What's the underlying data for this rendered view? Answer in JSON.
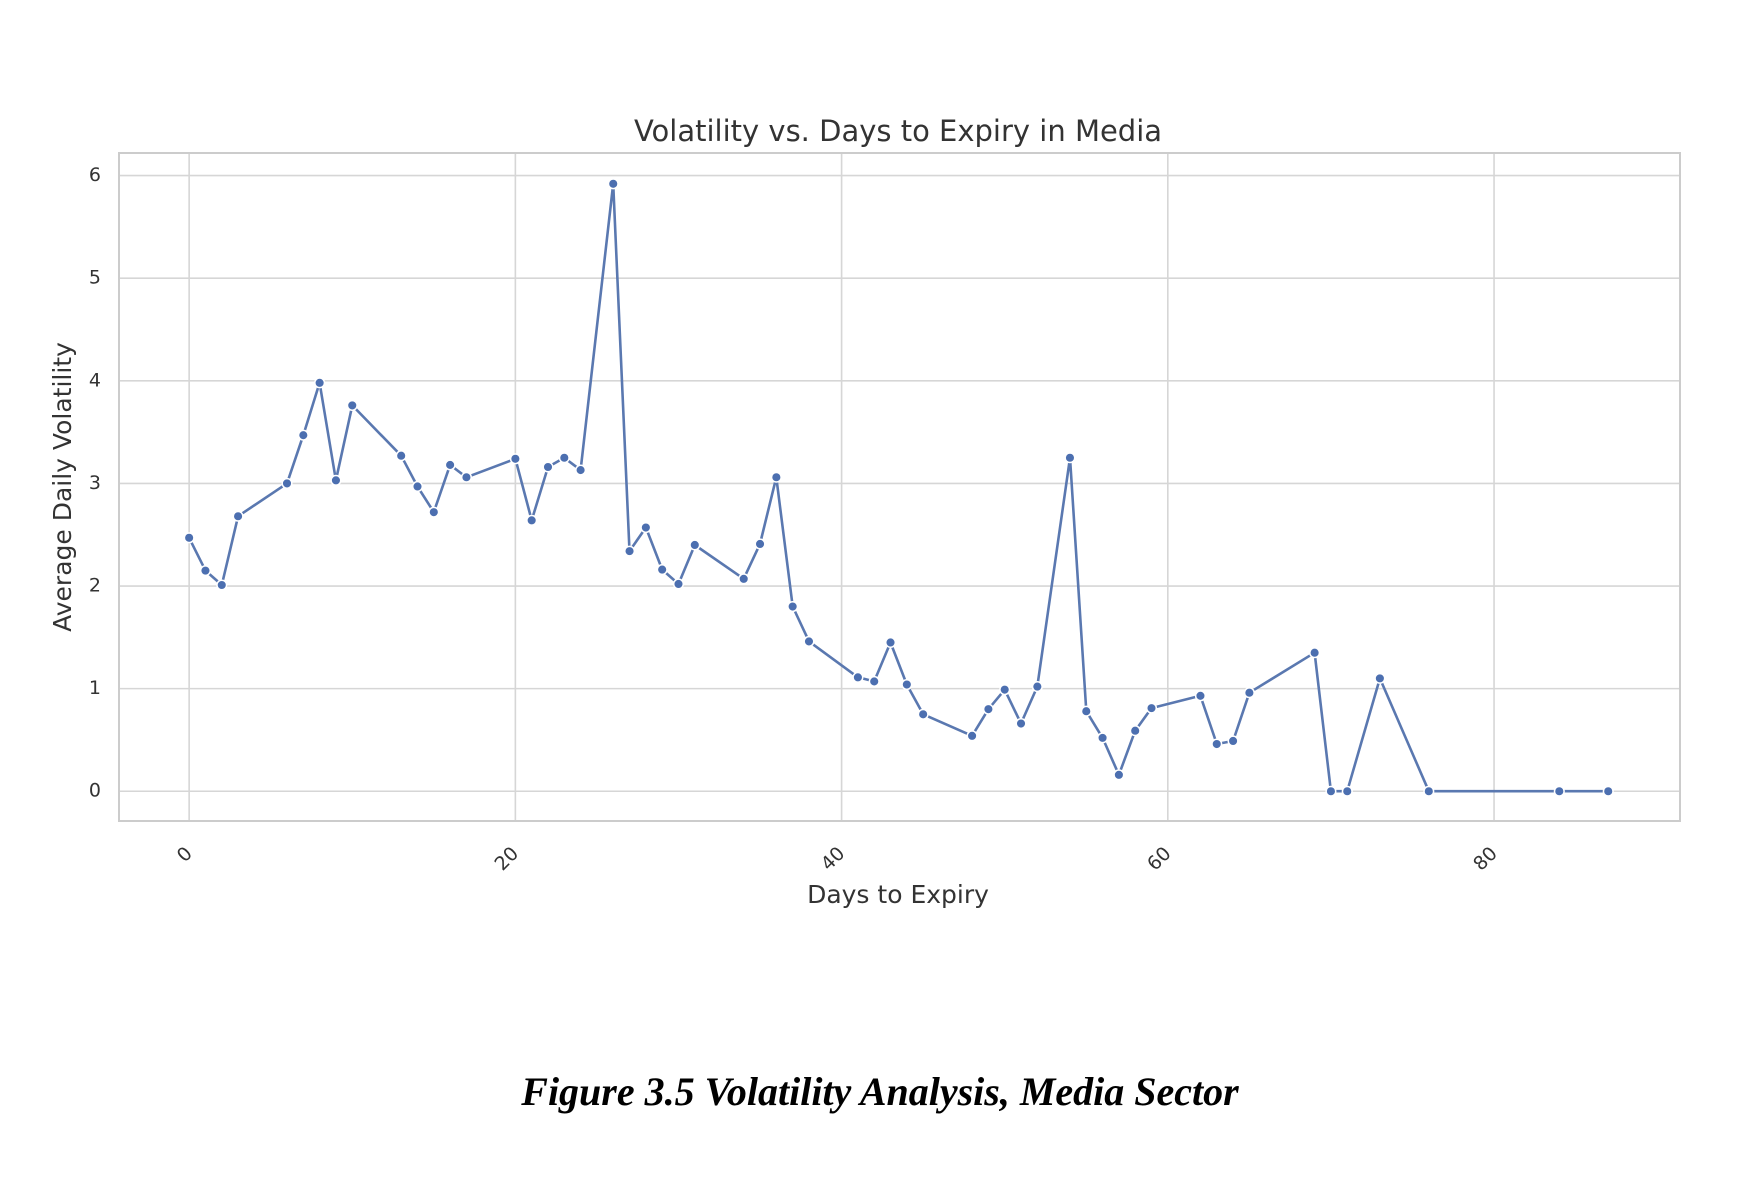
{
  "caption": "Figure 3.5 Volatility Analysis, Media Sector",
  "colors": {
    "series": "#5a78b0",
    "grid": "#d6d6d6",
    "frame": "#cccccc"
  },
  "chart_data": {
    "type": "line",
    "title": "Volatility vs. Days to Expiry in Media",
    "xlabel": "Days to Expiry",
    "ylabel": "Average Daily Volatility",
    "xlim": [
      -4.3,
      91.4
    ],
    "ylim": [
      -0.29,
      6.22
    ],
    "xticks": [
      0,
      20,
      40,
      60,
      80
    ],
    "yticks": [
      0,
      1,
      2,
      3,
      4,
      5,
      6
    ],
    "xtick_rotation_deg": 45,
    "grid": true,
    "legend": "none",
    "x": [
      0,
      1,
      2,
      3,
      6,
      7,
      8,
      9,
      10,
      13,
      14,
      15,
      16,
      17,
      20,
      21,
      22,
      23,
      24,
      26,
      27,
      28,
      29,
      30,
      31,
      34,
      35,
      36,
      37,
      38,
      41,
      42,
      43,
      44,
      45,
      48,
      49,
      50,
      51,
      52,
      54,
      55,
      56,
      57,
      58,
      59,
      62,
      63,
      64,
      65,
      69,
      70,
      71,
      73,
      76,
      84,
      87
    ],
    "series": [
      {
        "values": [
          2.47,
          2.15,
          2.01,
          2.68,
          3.0,
          3.47,
          3.98,
          3.03,
          3.76,
          3.27,
          2.97,
          2.72,
          3.18,
          3.06,
          3.24,
          2.64,
          3.16,
          3.25,
          3.13,
          5.92,
          2.34,
          2.57,
          2.16,
          2.02,
          2.4,
          2.07,
          2.41,
          3.06,
          1.8,
          1.46,
          1.11,
          1.07,
          1.45,
          1.04,
          0.75,
          0.54,
          0.8,
          0.99,
          0.66,
          1.02,
          3.25,
          0.78,
          0.52,
          0.16,
          0.59,
          0.81,
          0.93,
          0.46,
          0.49,
          0.96,
          1.35,
          0.0,
          0.0,
          1.1,
          0.0,
          0.0,
          0.0
        ]
      }
    ]
  }
}
